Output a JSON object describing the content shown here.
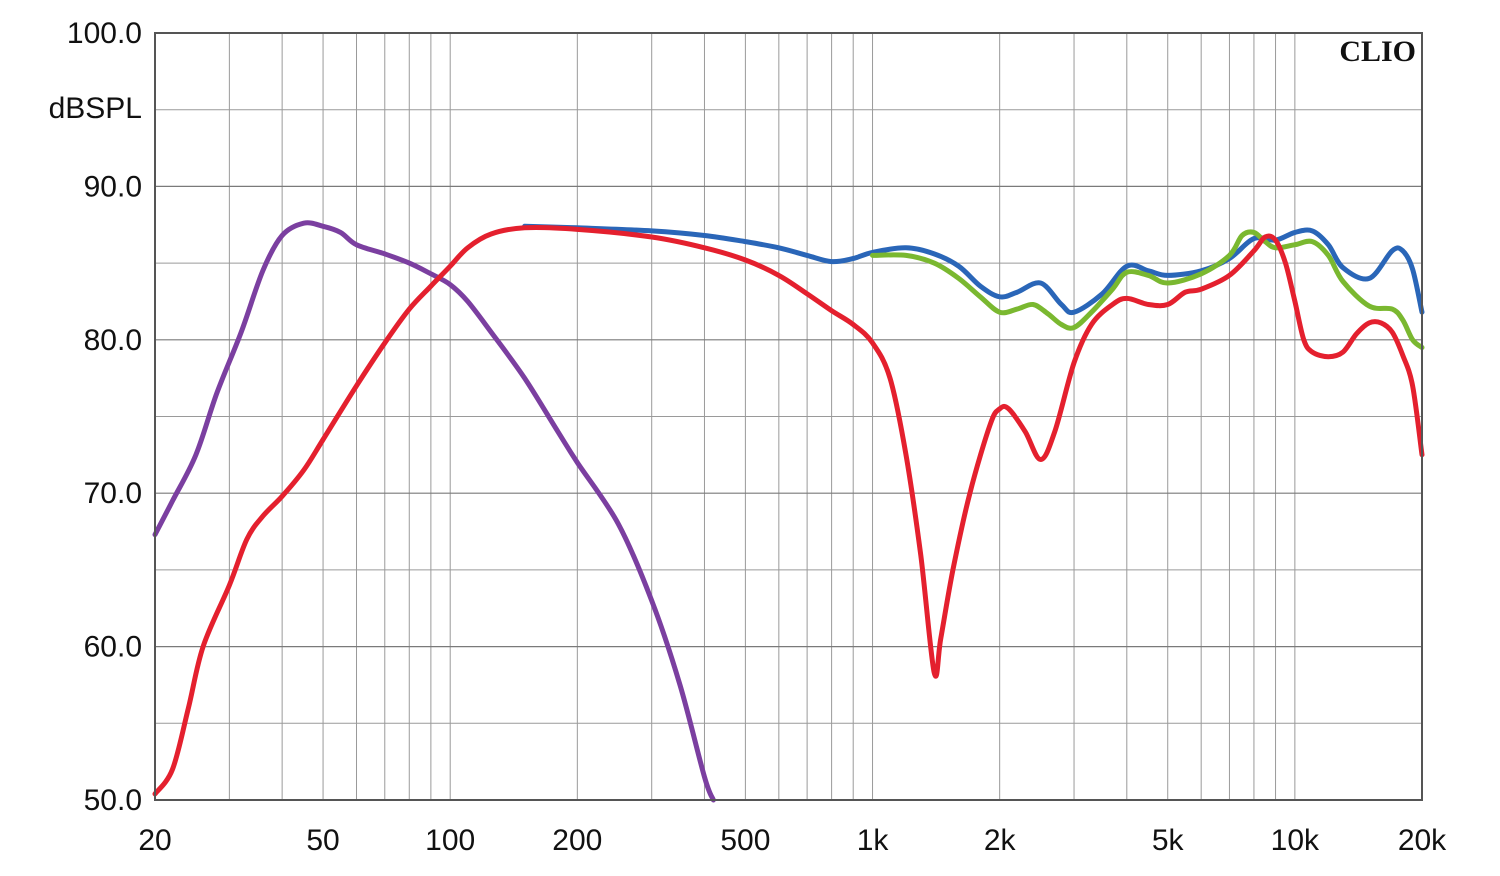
{
  "chart_data": {
    "type": "line",
    "brand": "CLIO",
    "ylabel": "dBSPL",
    "xscale": "log",
    "xlim": [
      20,
      20000
    ],
    "ylim": [
      50,
      100
    ],
    "grid": true,
    "x_ticks": [
      {
        "value": 20,
        "label": "20"
      },
      {
        "value": 50,
        "label": "50"
      },
      {
        "value": 100,
        "label": "100"
      },
      {
        "value": 200,
        "label": "200"
      },
      {
        "value": 500,
        "label": "500"
      },
      {
        "value": 1000,
        "label": "1k"
      },
      {
        "value": 2000,
        "label": "2k"
      },
      {
        "value": 5000,
        "label": "5k"
      },
      {
        "value": 10000,
        "label": "10k"
      },
      {
        "value": 20000,
        "label": "20k"
      }
    ],
    "y_ticks": [
      {
        "value": 50,
        "label": "50.0"
      },
      {
        "value": 60,
        "label": "60.0"
      },
      {
        "value": 70,
        "label": "70.0"
      },
      {
        "value": 80,
        "label": "80.0"
      },
      {
        "value": 90,
        "label": "90.0"
      },
      {
        "value": 100,
        "label": "100.0"
      }
    ],
    "series": [
      {
        "color": "#7b3fa0",
        "points": [
          [
            20,
            67.3
          ],
          [
            22,
            69.5
          ],
          [
            25,
            72.5
          ],
          [
            28,
            76.5
          ],
          [
            32,
            80.5
          ],
          [
            36,
            84.5
          ],
          [
            40,
            86.8
          ],
          [
            45,
            87.6
          ],
          [
            50,
            87.4
          ],
          [
            55,
            87
          ],
          [
            60,
            86.2
          ],
          [
            70,
            85.6
          ],
          [
            80,
            85
          ],
          [
            90,
            84.3
          ],
          [
            100,
            83.6
          ],
          [
            110,
            82.5
          ],
          [
            125,
            80.5
          ],
          [
            150,
            77.5
          ],
          [
            180,
            74
          ],
          [
            200,
            72
          ],
          [
            250,
            68
          ],
          [
            300,
            63
          ],
          [
            350,
            57.5
          ],
          [
            400,
            51.5
          ],
          [
            420,
            50
          ]
        ]
      },
      {
        "color": "#2a66b8",
        "points": [
          [
            150,
            87.4
          ],
          [
            200,
            87.3
          ],
          [
            300,
            87.1
          ],
          [
            400,
            86.8
          ],
          [
            500,
            86.4
          ],
          [
            600,
            86
          ],
          [
            700,
            85.5
          ],
          [
            800,
            85.1
          ],
          [
            900,
            85.3
          ],
          [
            1000,
            85.7
          ],
          [
            1200,
            86
          ],
          [
            1400,
            85.6
          ],
          [
            1600,
            84.8
          ],
          [
            1800,
            83.5
          ],
          [
            2000,
            82.8
          ],
          [
            2200,
            83.1
          ],
          [
            2500,
            83.7
          ],
          [
            2800,
            82.3
          ],
          [
            3000,
            81.8
          ],
          [
            3500,
            83
          ],
          [
            4000,
            84.8
          ],
          [
            4500,
            84.5
          ],
          [
            5000,
            84.2
          ],
          [
            6000,
            84.5
          ],
          [
            7000,
            85.3
          ],
          [
            8000,
            86.6
          ],
          [
            9000,
            86.5
          ],
          [
            10000,
            87
          ],
          [
            11000,
            87.1
          ],
          [
            12000,
            86.2
          ],
          [
            13000,
            84.7
          ],
          [
            15000,
            84
          ],
          [
            17000,
            85.8
          ],
          [
            18000,
            85.8
          ],
          [
            19000,
            84.6
          ],
          [
            20000,
            81.8
          ]
        ]
      },
      {
        "color": "#7ab830",
        "points": [
          [
            1000,
            85.5
          ],
          [
            1200,
            85.5
          ],
          [
            1400,
            85
          ],
          [
            1600,
            84
          ],
          [
            1800,
            82.8
          ],
          [
            2000,
            81.8
          ],
          [
            2200,
            82
          ],
          [
            2400,
            82.3
          ],
          [
            2600,
            81.7
          ],
          [
            2800,
            81
          ],
          [
            3000,
            80.8
          ],
          [
            3300,
            81.8
          ],
          [
            3700,
            83.3
          ],
          [
            4000,
            84.4
          ],
          [
            4500,
            84.2
          ],
          [
            5000,
            83.7
          ],
          [
            6000,
            84.3
          ],
          [
            7000,
            85.5
          ],
          [
            7500,
            86.8
          ],
          [
            8000,
            87
          ],
          [
            8500,
            86.4
          ],
          [
            9000,
            86
          ],
          [
            10000,
            86.2
          ],
          [
            11000,
            86.4
          ],
          [
            12000,
            85.5
          ],
          [
            13000,
            83.8
          ],
          [
            15000,
            82.2
          ],
          [
            17000,
            82
          ],
          [
            18000,
            81.3
          ],
          [
            19000,
            80
          ],
          [
            20000,
            79.5
          ]
        ]
      },
      {
        "color": "#e4202e",
        "points": [
          [
            20,
            50.4
          ],
          [
            22,
            52
          ],
          [
            24,
            56
          ],
          [
            26,
            60
          ],
          [
            30,
            64
          ],
          [
            33,
            67
          ],
          [
            36,
            68.5
          ],
          [
            40,
            69.8
          ],
          [
            45,
            71.5
          ],
          [
            50,
            73.5
          ],
          [
            60,
            77
          ],
          [
            70,
            79.8
          ],
          [
            80,
            82
          ],
          [
            90,
            83.5
          ],
          [
            100,
            84.8
          ],
          [
            110,
            86
          ],
          [
            125,
            86.9
          ],
          [
            150,
            87.3
          ],
          [
            200,
            87.2
          ],
          [
            300,
            86.7
          ],
          [
            400,
            86
          ],
          [
            500,
            85.2
          ],
          [
            600,
            84.2
          ],
          [
            700,
            83
          ],
          [
            800,
            81.9
          ],
          [
            900,
            81
          ],
          [
            1000,
            79.8
          ],
          [
            1100,
            77.5
          ],
          [
            1200,
            72.5
          ],
          [
            1300,
            66
          ],
          [
            1400,
            58.3
          ],
          [
            1450,
            60.5
          ],
          [
            1550,
            65
          ],
          [
            1700,
            70
          ],
          [
            1900,
            74.5
          ],
          [
            2000,
            75.5
          ],
          [
            2100,
            75.5
          ],
          [
            2300,
            74
          ],
          [
            2500,
            72.2
          ],
          [
            2700,
            74
          ],
          [
            3000,
            78.5
          ],
          [
            3300,
            81
          ],
          [
            3700,
            82.3
          ],
          [
            4000,
            82.7
          ],
          [
            4500,
            82.3
          ],
          [
            5000,
            82.3
          ],
          [
            5500,
            83.1
          ],
          [
            6000,
            83.3
          ],
          [
            7000,
            84.2
          ],
          [
            8000,
            85.8
          ],
          [
            8500,
            86.7
          ],
          [
            9000,
            86.5
          ],
          [
            9500,
            85
          ],
          [
            10000,
            82.5
          ],
          [
            10500,
            80
          ],
          [
            11000,
            79.2
          ],
          [
            12000,
            78.9
          ],
          [
            13000,
            79.2
          ],
          [
            14000,
            80.4
          ],
          [
            15000,
            81.1
          ],
          [
            16000,
            81.1
          ],
          [
            17000,
            80.5
          ],
          [
            18000,
            79
          ],
          [
            19000,
            77
          ],
          [
            20000,
            72.5
          ]
        ]
      }
    ]
  }
}
